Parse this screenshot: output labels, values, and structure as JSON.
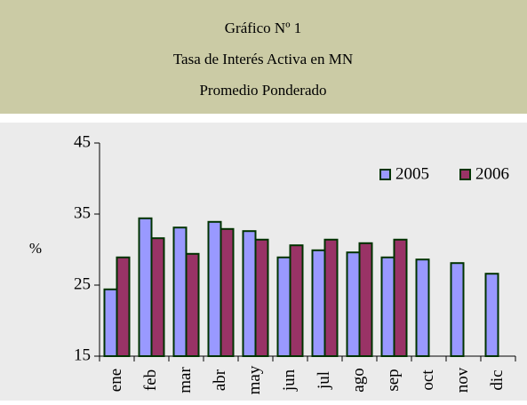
{
  "chart_data": {
    "type": "bar",
    "title": "Gráfico Nº 1",
    "subtitle": [
      "Tasa de Interés Activa en MN",
      "Promedio Ponderado"
    ],
    "y_label": "%",
    "categories": [
      "ene",
      "feb",
      "mar",
      "abr",
      "may",
      "jun",
      "jul",
      "ago",
      "sep",
      "oct",
      "nov",
      "dic"
    ],
    "series": [
      {
        "name": "2005",
        "color": "#9999ff",
        "values": [
          24.4,
          34.4,
          33.1,
          33.9,
          32.6,
          28.9,
          29.9,
          29.6,
          28.9,
          28.6,
          28.1,
          26.6
        ]
      },
      {
        "name": "2006",
        "color": "#993366",
        "values": [
          28.9,
          31.6,
          29.4,
          32.9,
          31.4,
          30.6,
          31.4,
          30.9,
          31.4,
          null,
          null,
          null
        ]
      }
    ],
    "ylim": [
      15,
      45
    ],
    "yticks": [
      15,
      25,
      35,
      45
    ],
    "legend": "top-right",
    "bar_border": "#003300"
  }
}
